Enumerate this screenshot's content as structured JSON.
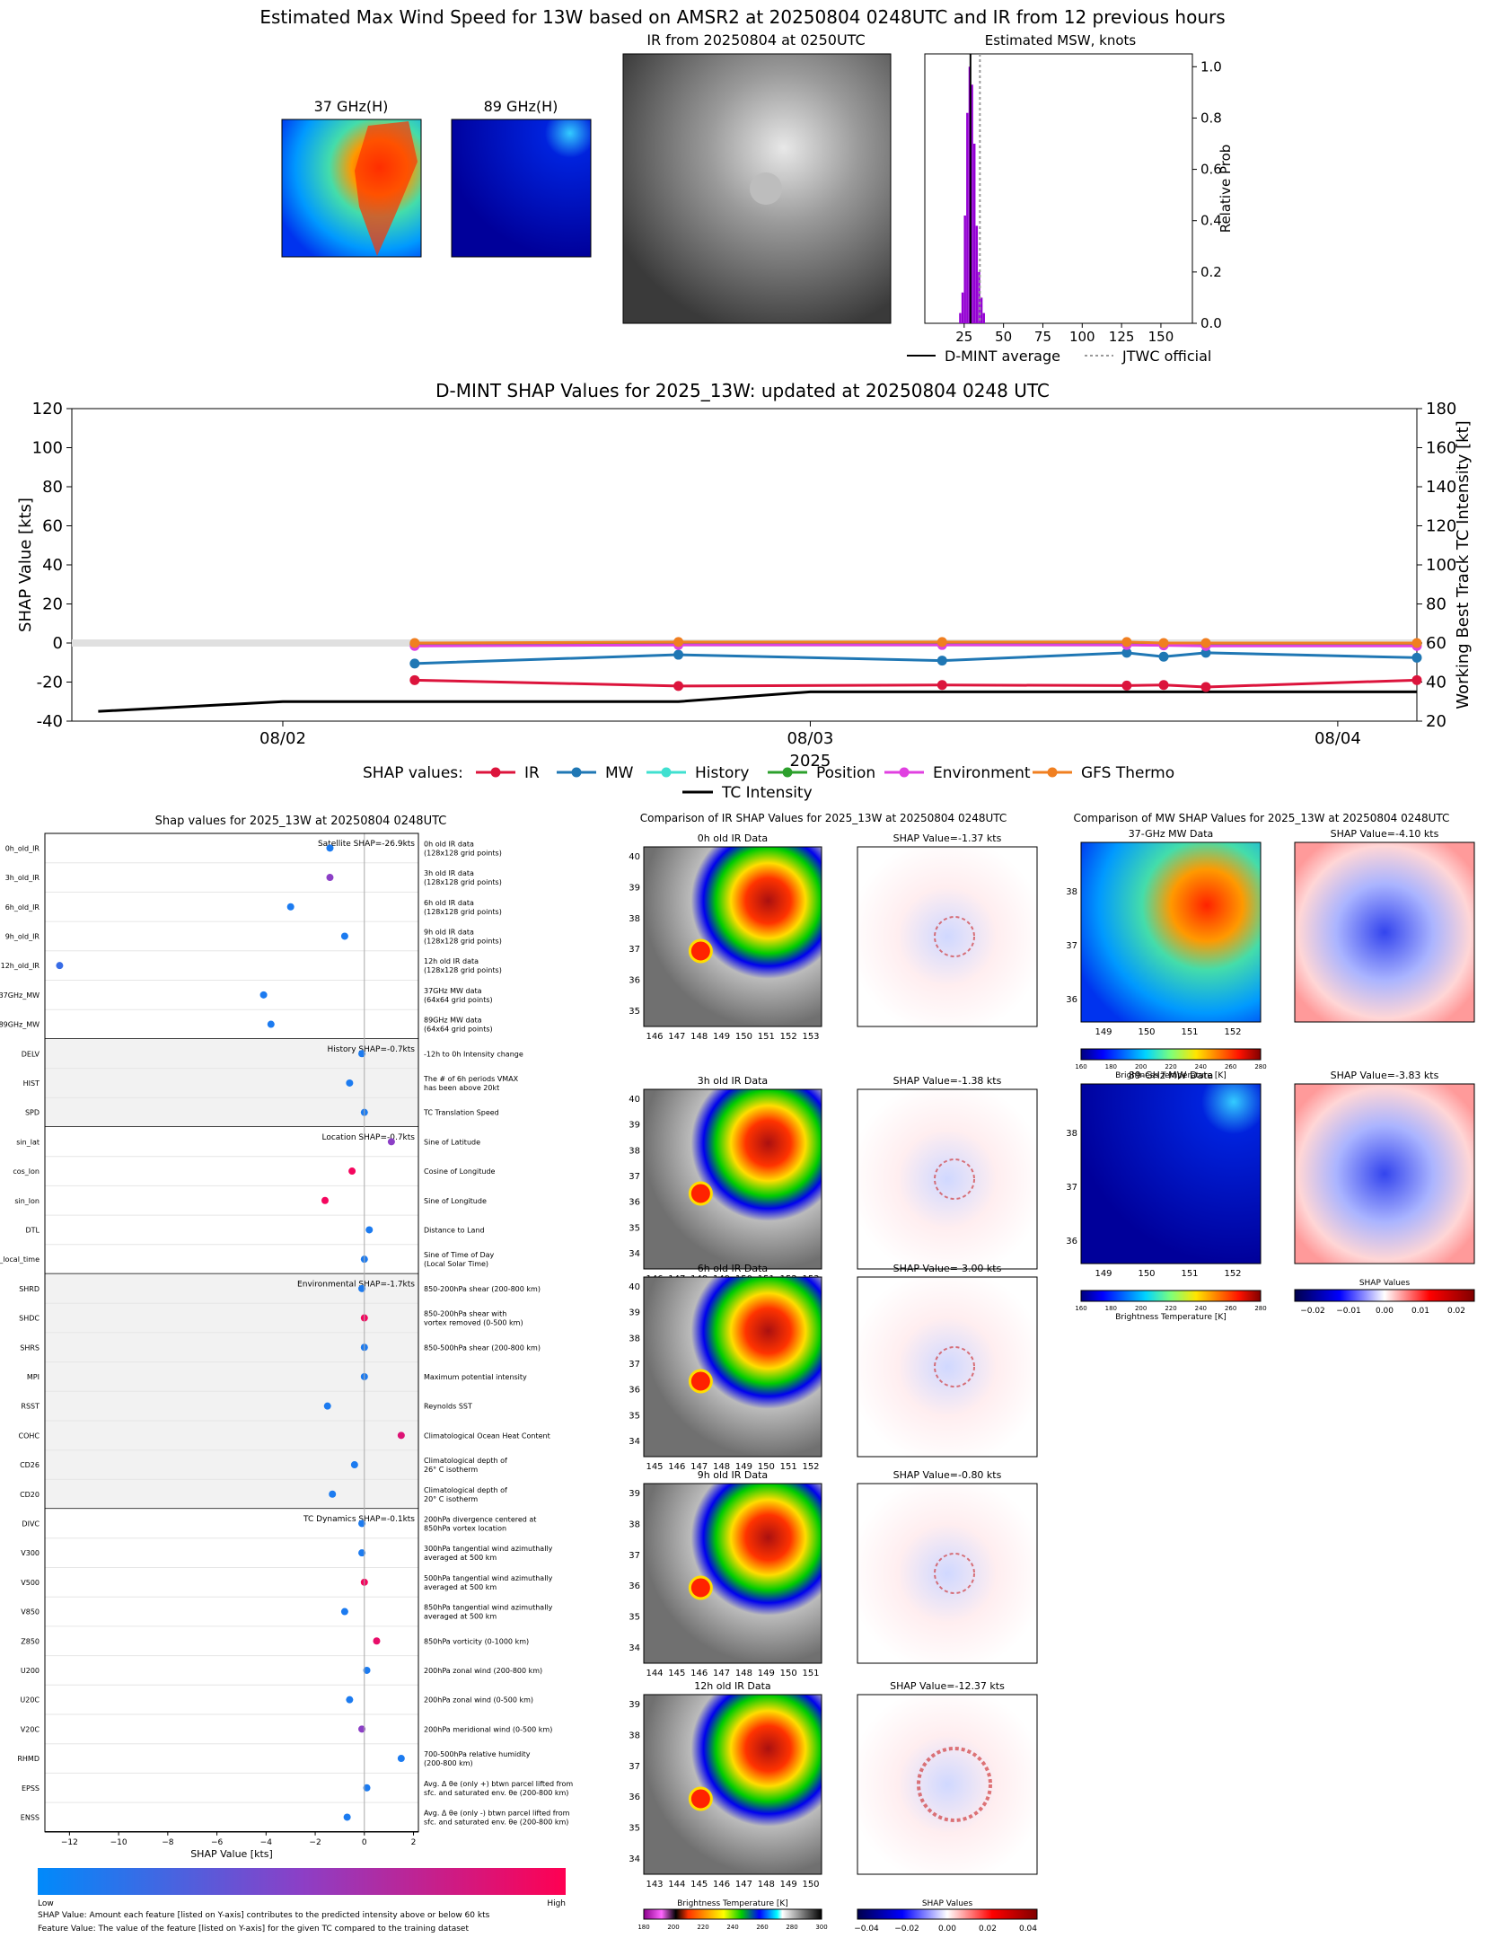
{
  "header": {
    "title": "Estimated Max Wind Speed for 13W based on AMSR2 at 20250804 0248UTC and IR from 12 previous hours",
    "panel_37": "37 GHz(H)",
    "panel_89": "89 GHz(H)",
    "panel_ir": "IR from 20250804 at 0250UTC",
    "panel_msw": "Estimated MSW, knots",
    "legend_avg": "D-MINT average",
    "legend_jtwc": "JTWC official"
  },
  "colors": {
    "ir": "#dc143c",
    "mw": "#1f77b4",
    "history": "#40e0d0",
    "position": "#2ca02c",
    "environment": "#e040e0",
    "gfs": "#f07f20",
    "hist_bar": "#9400d3"
  },
  "bottom": {
    "shap_title": "Shap values for 2025_13W at 20250804 0248UTC",
    "ir_title": "Comparison of IR SHAP Values for 2025_13W at 20250804 0248UTC",
    "mw_title": "Comparison of MW SHAP Values for 2025_13W at 20250804 0248UTC",
    "xlabel": "SHAP Value [kts]",
    "low": "Low",
    "high": "High",
    "note1": "SHAP Value: Amount each feature [listed on Y-axis] contributes to the predicted intensity above or below 60 kts",
    "note2": "Feature Value: The value of the feature [listed on Y-axis] for the given TC compared to the training dataset",
    "bt_label": "Brightness Temperature [K]",
    "shap_values_label": "SHAP Values"
  },
  "chart_data": [
    {
      "type": "bar",
      "title": "Estimated MSW, knots",
      "ylabel": "Relative Prob",
      "xlim": [
        0,
        170
      ],
      "ylim": [
        0,
        1.05
      ],
      "xticks": [
        25,
        50,
        75,
        100,
        125,
        150
      ],
      "yticks": [
        "0.0",
        "0.2",
        "0.4",
        "0.6",
        "0.8",
        "1.0"
      ],
      "bins": [
        {
          "x": 22.5,
          "v": 0.04
        },
        {
          "x": 24,
          "v": 0.12
        },
        {
          "x": 25.5,
          "v": 0.42
        },
        {
          "x": 27,
          "v": 0.82
        },
        {
          "x": 28.5,
          "v": 1.0
        },
        {
          "x": 30,
          "v": 0.93
        },
        {
          "x": 31.5,
          "v": 0.7
        },
        {
          "x": 33,
          "v": 0.38
        },
        {
          "x": 34.5,
          "v": 0.2
        },
        {
          "x": 36,
          "v": 0.1
        },
        {
          "x": 37.5,
          "v": 0.04
        }
      ],
      "dmint_average": 29,
      "jtwc_official": 35
    },
    {
      "type": "line",
      "title": "D-MINT SHAP Values for 2025_13W: updated at 20250804 0248 UTC",
      "xlabel": "2025",
      "ylabel": "SHAP Value [kts]",
      "y2label": "Working Best Track TC Intensity [kt]",
      "ylim": [
        -40,
        120
      ],
      "y2lim": [
        20,
        180
      ],
      "yticks": [
        -40,
        -20,
        0,
        20,
        40,
        60,
        80,
        100,
        120
      ],
      "y2ticks": [
        20,
        40,
        60,
        80,
        100,
        120,
        140,
        160,
        180
      ],
      "xticks": [
        {
          "t": 1.0,
          "label": "08/02"
        },
        {
          "t": 2.0,
          "label": "08/03"
        },
        {
          "t": 3.0,
          "label": "08/04"
        }
      ],
      "xlim": [
        0.6,
        3.15
      ],
      "legend_title": "SHAP values:",
      "series": [
        {
          "name": "IR",
          "key": "ir",
          "t": [
            1.25,
            1.75,
            2.25,
            2.6,
            2.67,
            2.75,
            3.15
          ],
          "values": [
            -19,
            -22,
            -21.5,
            -21.8,
            -21.5,
            -22.5,
            -19
          ]
        },
        {
          "name": "MW",
          "key": "mw",
          "t": [
            1.25,
            1.75,
            2.25,
            2.6,
            2.67,
            2.75,
            3.15
          ],
          "values": [
            -10.5,
            -6,
            -9,
            -5,
            -7,
            -5,
            -7.5
          ]
        },
        {
          "name": "History",
          "key": "history",
          "t": [
            1.25,
            1.75,
            2.25,
            2.6,
            2.67,
            2.75,
            3.15
          ],
          "values": [
            -1,
            -0.5,
            -0.5,
            -0.5,
            -0.5,
            -0.5,
            -1
          ]
        },
        {
          "name": "Position",
          "key": "position",
          "t": [
            1.25,
            1.75,
            2.25,
            2.6,
            2.67,
            2.75,
            3.15
          ],
          "values": [
            -0.5,
            -0.5,
            -0.5,
            -0.5,
            -0.5,
            -0.5,
            -0.5
          ]
        },
        {
          "name": "Environment",
          "key": "environment",
          "t": [
            1.25,
            1.75,
            2.25,
            2.6,
            2.67,
            2.75,
            3.15
          ],
          "values": [
            -1.5,
            -1,
            -1,
            -1,
            -1.2,
            -1.5,
            -1.5
          ]
        },
        {
          "name": "GFS Thermo",
          "key": "gfs",
          "t": [
            1.25,
            1.75,
            2.25,
            2.6,
            2.67,
            2.75,
            3.15
          ],
          "values": [
            0,
            0.5,
            0.5,
            0.5,
            0,
            0,
            0
          ]
        }
      ],
      "intensity": {
        "name": "TC Intensity",
        "t": [
          0.65,
          1.0,
          1.75,
          2.0,
          3.15
        ],
        "values": [
          25,
          30,
          30,
          35,
          35
        ]
      }
    },
    {
      "type": "scatter",
      "title": "Shap values for 2025_13W at 20250804 0248UTC",
      "xlabel": "SHAP Value [kts]",
      "xlim": [
        -13,
        2.2
      ],
      "xticks": [
        -12,
        -10,
        -8,
        -6,
        -4,
        -2,
        0,
        2
      ],
      "groups": [
        {
          "label": "Satellite SHAP=-26.9kts",
          "shaded": false,
          "features": [
            {
              "name": "0h_old_IR",
              "desc": [
                "0h old IR data",
                "(128x128 grid points)"
              ],
              "value": -1.4,
              "c": 0.1
            },
            {
              "name": "3h_old_IR",
              "desc": [
                "3h old IR data",
                "(128x128 grid points)"
              ],
              "value": -1.4,
              "c": 0.5
            },
            {
              "name": "6h_old_IR",
              "desc": [
                "6h old IR data",
                "(128x128 grid points)"
              ],
              "value": -3.0,
              "c": 0.1
            },
            {
              "name": "9h_old_IR",
              "desc": [
                "9h old IR data",
                "(128x128 grid points)"
              ],
              "value": -0.8,
              "c": 0.1
            },
            {
              "name": "12h_old_IR",
              "desc": [
                "12h old IR data",
                "(128x128 grid points)"
              ],
              "value": -12.4,
              "c": 0.2
            },
            {
              "name": "37GHz_MW",
              "desc": [
                "37GHz MW data",
                "(64x64 grid points)"
              ],
              "value": -4.1,
              "c": 0.1
            },
            {
              "name": "89GHz_MW",
              "desc": [
                "89GHz MW data",
                "(64x64 grid points)"
              ],
              "value": -3.8,
              "c": 0.1
            }
          ]
        },
        {
          "label": "History SHAP=-0.7kts",
          "shaded": true,
          "features": [
            {
              "name": "DELV",
              "desc": [
                "-12h to 0h Intensity change"
              ],
              "value": -0.1,
              "c": 0.1
            },
            {
              "name": "HIST",
              "desc": [
                "The # of 6h periods VMAX",
                "has been above 20kt"
              ],
              "value": -0.6,
              "c": 0.1
            },
            {
              "name": "SPD",
              "desc": [
                "TC Translation Speed"
              ],
              "value": 0.0,
              "c": 0.1
            }
          ]
        },
        {
          "label": "Location SHAP=-0.7kts",
          "shaded": false,
          "features": [
            {
              "name": "sin_lat",
              "desc": [
                "Sine of Latitude"
              ],
              "value": 1.1,
              "c": 0.5
            },
            {
              "name": "cos_lon",
              "desc": [
                "Cosine of Longitude"
              ],
              "value": -0.5,
              "c": 0.95
            },
            {
              "name": "sin_lon",
              "desc": [
                "Sine of Longitude"
              ],
              "value": -1.6,
              "c": 0.95
            },
            {
              "name": "DTL",
              "desc": [
                "Distance to Land"
              ],
              "value": 0.2,
              "c": 0.1
            },
            {
              "name": "sin_local_time",
              "desc": [
                "Sine of Time of Day",
                "(Local Solar Time)"
              ],
              "value": 0.0,
              "c": 0.1
            }
          ]
        },
        {
          "label": "Environmental SHAP=-1.7kts",
          "shaded": true,
          "features": [
            {
              "name": "SHRD",
              "desc": [
                "850-200hPa shear (200-800 km)"
              ],
              "value": -0.1,
              "c": 0.1
            },
            {
              "name": "SHDC",
              "desc": [
                "850-200hPa shear with",
                "vortex removed (0-500 km)"
              ],
              "value": 0.0,
              "c": 0.95
            },
            {
              "name": "SHRS",
              "desc": [
                "850-500hPa shear (200-800 km)"
              ],
              "value": 0.0,
              "c": 0.1
            },
            {
              "name": "MPI",
              "desc": [
                "Maximum potential intensity"
              ],
              "value": 0.0,
              "c": 0.1
            },
            {
              "name": "RSST",
              "desc": [
                "Reynolds SST"
              ],
              "value": -1.5,
              "c": 0.1
            },
            {
              "name": "COHC",
              "desc": [
                "Climatological Ocean Heat Content"
              ],
              "value": 1.5,
              "c": 0.85
            },
            {
              "name": "CD26",
              "desc": [
                "Climatological depth of",
                "26° C isotherm"
              ],
              "value": -0.4,
              "c": 0.1
            },
            {
              "name": "CD20",
              "desc": [
                "Climatological depth of",
                "20° C isotherm"
              ],
              "value": -1.3,
              "c": 0.1
            }
          ]
        },
        {
          "label": "TC Dynamics SHAP=-0.1kts",
          "shaded": false,
          "features": [
            {
              "name": "DIVC",
              "desc": [
                "200hPa divergence centered at",
                "850hPa vortex location"
              ],
              "value": -0.1,
              "c": 0.1
            },
            {
              "name": "V300",
              "desc": [
                "300hPa tangential wind azimuthally",
                "averaged at 500 km"
              ],
              "value": -0.1,
              "c": 0.1
            },
            {
              "name": "V500",
              "desc": [
                "500hPa tangential wind azimuthally",
                "averaged at 500 km"
              ],
              "value": 0.0,
              "c": 0.95
            },
            {
              "name": "V850",
              "desc": [
                "850hPa tangential wind azimuthally",
                "averaged at 500 km"
              ],
              "value": -0.8,
              "c": 0.1
            },
            {
              "name": "Z850",
              "desc": [
                "850hPa vorticity (0-1000 km)"
              ],
              "value": 0.5,
              "c": 0.9
            },
            {
              "name": "U200",
              "desc": [
                "200hPa zonal wind (200-800 km)"
              ],
              "value": 0.1,
              "c": 0.1
            },
            {
              "name": "U20C",
              "desc": [
                "200hPa zonal wind (0-500 km)"
              ],
              "value": -0.6,
              "c": 0.1
            },
            {
              "name": "V20C",
              "desc": [
                "200hPa meridional wind (0-500 km)"
              ],
              "value": -0.1,
              "c": 0.5
            },
            {
              "name": "RHMD",
              "desc": [
                "700-500hPa relative humidity",
                "(200-800 km)"
              ],
              "value": 1.5,
              "c": 0.1
            },
            {
              "name": "EPSS",
              "desc": [
                "Avg. Δ θe (only +) btwn parcel lifted from",
                "sfc. and saturated env. θe (200-800 km)"
              ],
              "value": 0.1,
              "c": 0.1
            },
            {
              "name": "ENSS",
              "desc": [
                "Avg. Δ θe (only -) btwn parcel lifted from",
                "sfc. and saturated env. θe (200-800 km)"
              ],
              "value": -0.7,
              "c": 0.1
            }
          ]
        }
      ]
    }
  ],
  "ir_panels": [
    {
      "title": "0h old IR Data",
      "shap": "SHAP Value=-1.37 kts",
      "xticks": [
        "146",
        "147",
        "148",
        "149",
        "150",
        "151",
        "152",
        "153"
      ],
      "yticks": [
        "40",
        "39",
        "38",
        "37",
        "36",
        "35"
      ]
    },
    {
      "title": "3h old IR Data",
      "shap": "SHAP Value=-1.38 kts",
      "xticks": [
        "146",
        "147",
        "148",
        "149",
        "150",
        "151",
        "152",
        "153"
      ],
      "yticks": [
        "40",
        "39",
        "38",
        "37",
        "36",
        "35",
        "34"
      ]
    },
    {
      "title": "6h old IR Data",
      "shap": "SHAP Value=-3.00 kts",
      "xticks": [
        "145",
        "146",
        "147",
        "148",
        "149",
        "150",
        "151",
        "152"
      ],
      "yticks": [
        "40",
        "39",
        "38",
        "37",
        "36",
        "35",
        "34"
      ]
    },
    {
      "title": "9h old IR Data",
      "shap": "SHAP Value=-0.80 kts",
      "xticks": [
        "144",
        "145",
        "146",
        "147",
        "148",
        "149",
        "150",
        "151"
      ],
      "yticks": [
        "39",
        "38",
        "37",
        "36",
        "35",
        "34"
      ]
    },
    {
      "title": "12h old IR Data",
      "shap": "SHAP Value=-12.37 kts",
      "xticks": [
        "143",
        "144",
        "145",
        "146",
        "147",
        "148",
        "149",
        "150"
      ],
      "yticks": [
        "39",
        "38",
        "37",
        "36",
        "35",
        "34"
      ]
    }
  ],
  "mw_panels": [
    {
      "title": "37-GHz MW Data",
      "shap": "SHAP Value=-4.10 kts",
      "xticks": [
        "149",
        "150",
        "151",
        "152"
      ],
      "yticks": [
        "38",
        "37",
        "36"
      ]
    },
    {
      "title": "89-GHz MW Data",
      "shap": "SHAP Value=-3.83 kts",
      "xticks": [
        "149",
        "150",
        "151",
        "152"
      ],
      "yticks": [
        "38",
        "37",
        "36"
      ]
    }
  ],
  "bt_ticks_mw": [
    "160",
    "180",
    "200",
    "220",
    "240",
    "260",
    "280"
  ],
  "bt_ticks_ir": [
    "180",
    "200",
    "220",
    "240",
    "260",
    "280",
    "300"
  ],
  "shap_ticks_mw": [
    "−0.02",
    "−0.01",
    "0.00",
    "0.01",
    "0.02"
  ],
  "shap_ticks_ir": [
    "−0.04",
    "−0.02",
    "0.00",
    "0.02",
    "0.04"
  ]
}
